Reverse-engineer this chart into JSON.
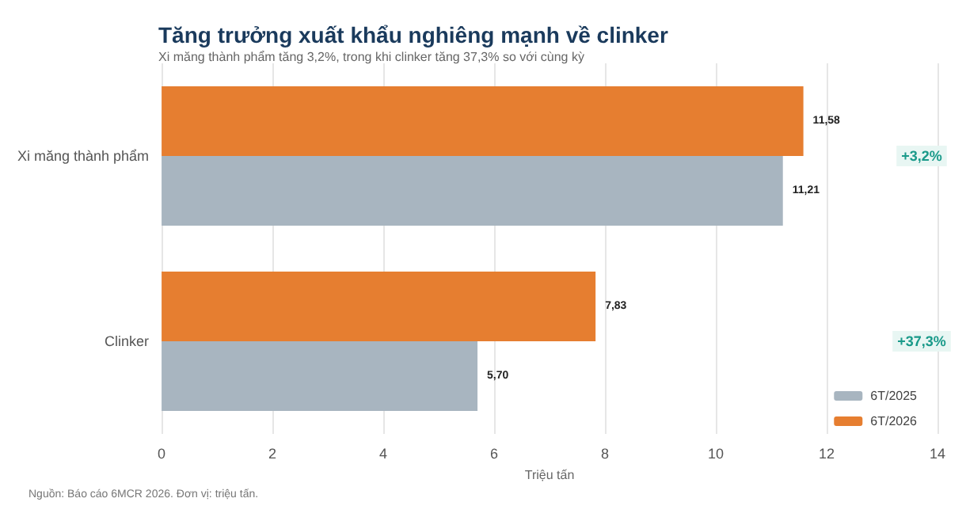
{
  "chart_data": {
    "type": "bar",
    "orientation": "horizontal",
    "title": "Tăng trưởng xuất khẩu nghiêng mạnh về clinker",
    "subtitle": "Xi măng thành phẩm tăng 3,2%, trong khi clinker tăng 37,3% so với cùng kỳ",
    "xlabel": "Triệu tấn",
    "categories": [
      "Xi măng thành phẩm",
      "Clinker"
    ],
    "series": [
      {
        "name": "6T/2025",
        "color": "#a8b5c0",
        "values": [
          11.21,
          5.7
        ],
        "value_labels": [
          "11,21",
          "5,70"
        ]
      },
      {
        "name": "6T/2026",
        "color": "#e67e30",
        "values": [
          11.58,
          7.83
        ],
        "value_labels": [
          "11,58",
          "7,83"
        ]
      }
    ],
    "xlim": [
      0,
      14
    ],
    "xticks": [
      0,
      2,
      4,
      6,
      8,
      10,
      12,
      14
    ],
    "grid": "x",
    "legend": "bottom right",
    "annotations": [
      {
        "text": "+3,2%",
        "y": "Xi măng thành phẩm"
      },
      {
        "text": "+37,3%",
        "y": "Clinker"
      },
      "Nguồn: Báo cáo 6MCR 2026. Đơn vị: triệu tấn."
    ]
  }
}
